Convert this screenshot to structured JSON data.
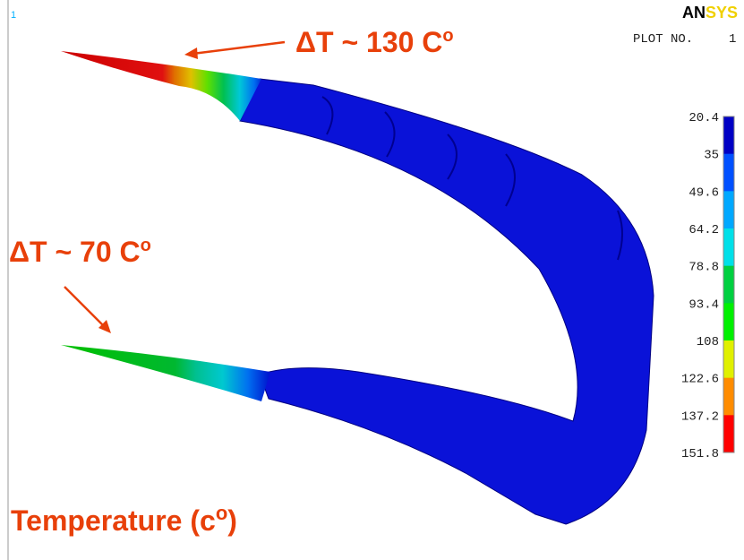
{
  "window": {
    "number": "1",
    "logo": {
      "bold": "AN",
      "rest": "SYS"
    },
    "plot_label": "PLOT NO.",
    "plot_number": "1"
  },
  "annotations": {
    "upper": {
      "text": "ΔT ~ 130 C",
      "sup": "o"
    },
    "lower": {
      "text": "ΔT ~ 70 C",
      "sup": "o"
    },
    "caption": {
      "text": "Temperature (c",
      "sup": "o",
      "end": ")"
    }
  },
  "legend": {
    "labels": [
      "20.4",
      "35",
      "49.6",
      "64.2",
      "78.8",
      "93.4",
      "108",
      "122.6",
      "137.2",
      "151.8"
    ],
    "colors": [
      "#0000c4",
      "#0050ff",
      "#00a8ff",
      "#00e0e8",
      "#00d040",
      "#00f000",
      "#e0f000",
      "#ff8c00",
      "#ff0000"
    ]
  }
}
